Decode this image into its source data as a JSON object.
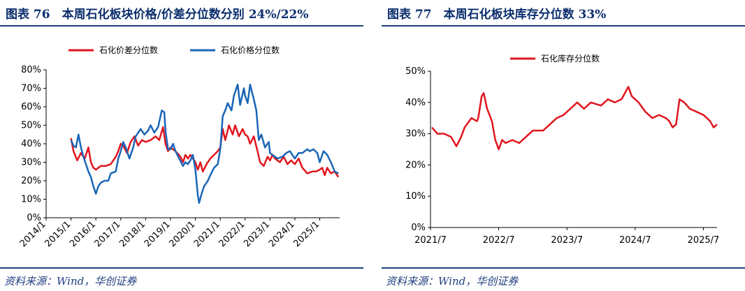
{
  "panel1": {
    "title": "图表 76　本周石化板块价格/价差分位数分别 24%/22%",
    "source": "资料来源：Wind，华创证券"
  },
  "panel2": {
    "title": "图表 77　本周石化板块库存分位数 33%",
    "source": "资料来源：Wind，华创证券"
  },
  "chart_data": [
    {
      "type": "line",
      "title": "本周石化板块价格/价差分位数分别 24%/22%",
      "x_ticks": [
        "2014/1",
        "2015/1",
        "2016/1",
        "2017/1",
        "2018/1",
        "2019/1",
        "2020/1",
        "2021/1",
        "2022/1",
        "2023/1",
        "2024/1",
        "2025/1"
      ],
      "y_ticks": [
        "0%",
        "10%",
        "20%",
        "30%",
        "40%",
        "50%",
        "60%",
        "70%",
        "80%"
      ],
      "xlim": [
        2014.0,
        2025.8
      ],
      "ylim": [
        0,
        80
      ],
      "legend": "top",
      "series": [
        {
          "name": "石化价差分位数",
          "color": "#e0161e",
          "points": [
            [
              2015.0,
              43
            ],
            [
              2015.1,
              36
            ],
            [
              2015.25,
              31
            ],
            [
              2015.4,
              35
            ],
            [
              2015.55,
              32
            ],
            [
              2015.7,
              38
            ],
            [
              2015.8,
              30
            ],
            [
              2015.9,
              27
            ],
            [
              2016.0,
              26
            ],
            [
              2016.2,
              28
            ],
            [
              2016.4,
              28
            ],
            [
              2016.6,
              29
            ],
            [
              2016.8,
              33
            ],
            [
              2016.9,
              36
            ],
            [
              2017.0,
              40
            ],
            [
              2017.1,
              39
            ],
            [
              2017.25,
              35
            ],
            [
              2017.4,
              41
            ],
            [
              2017.55,
              44
            ],
            [
              2017.7,
              39
            ],
            [
              2017.85,
              42
            ],
            [
              2018.0,
              41
            ],
            [
              2018.2,
              42
            ],
            [
              2018.4,
              44
            ],
            [
              2018.55,
              42
            ],
            [
              2018.7,
              49
            ],
            [
              2018.8,
              40
            ],
            [
              2018.9,
              36
            ],
            [
              2019.0,
              38
            ],
            [
              2019.2,
              36
            ],
            [
              2019.4,
              33
            ],
            [
              2019.5,
              30
            ],
            [
              2019.6,
              34
            ],
            [
              2019.7,
              32
            ],
            [
              2019.8,
              34
            ],
            [
              2020.0,
              30
            ],
            [
              2020.1,
              26
            ],
            [
              2020.2,
              30
            ],
            [
              2020.3,
              25
            ],
            [
              2020.45,
              29
            ],
            [
              2020.6,
              32
            ],
            [
              2020.75,
              34
            ],
            [
              2020.9,
              36
            ],
            [
              2021.0,
              38
            ],
            [
              2021.1,
              48
            ],
            [
              2021.2,
              42
            ],
            [
              2021.35,
              50
            ],
            [
              2021.5,
              45
            ],
            [
              2021.6,
              50
            ],
            [
              2021.75,
              44
            ],
            [
              2021.9,
              48
            ],
            [
              2022.0,
              45
            ],
            [
              2022.1,
              44
            ],
            [
              2022.2,
              40
            ],
            [
              2022.35,
              44
            ],
            [
              2022.5,
              36
            ],
            [
              2022.6,
              30
            ],
            [
              2022.75,
              28
            ],
            [
              2022.9,
              33
            ],
            [
              2023.0,
              31
            ],
            [
              2023.1,
              34
            ],
            [
              2023.2,
              32
            ],
            [
              2023.4,
              30
            ],
            [
              2023.55,
              33
            ],
            [
              2023.7,
              29
            ],
            [
              2023.85,
              31
            ],
            [
              2024.0,
              29
            ],
            [
              2024.15,
              32
            ],
            [
              2024.3,
              27
            ],
            [
              2024.5,
              24
            ],
            [
              2024.7,
              25
            ],
            [
              2024.85,
              25
            ],
            [
              2025.0,
              26
            ],
            [
              2025.1,
              27
            ],
            [
              2025.2,
              23
            ],
            [
              2025.3,
              27
            ],
            [
              2025.45,
              24
            ],
            [
              2025.6,
              25
            ],
            [
              2025.75,
              22
            ]
          ]
        },
        {
          "name": "石化价格分位数",
          "color": "#1a66b8",
          "points": [
            [
              2015.0,
              42
            ],
            [
              2015.1,
              39
            ],
            [
              2015.2,
              38
            ],
            [
              2015.3,
              45
            ],
            [
              2015.4,
              38
            ],
            [
              2015.5,
              33
            ],
            [
              2015.6,
              29
            ],
            [
              2015.7,
              25
            ],
            [
              2015.8,
              22
            ],
            [
              2015.9,
              17
            ],
            [
              2016.0,
              13
            ],
            [
              2016.1,
              17
            ],
            [
              2016.2,
              19
            ],
            [
              2016.35,
              20
            ],
            [
              2016.5,
              20
            ],
            [
              2016.6,
              24
            ],
            [
              2016.8,
              25
            ],
            [
              2016.9,
              32
            ],
            [
              2017.0,
              36
            ],
            [
              2017.1,
              41
            ],
            [
              2017.2,
              38
            ],
            [
              2017.35,
              32
            ],
            [
              2017.5,
              38
            ],
            [
              2017.6,
              44
            ],
            [
              2017.8,
              48
            ],
            [
              2017.95,
              45
            ],
            [
              2018.1,
              47
            ],
            [
              2018.2,
              50
            ],
            [
              2018.35,
              46
            ],
            [
              2018.5,
              49
            ],
            [
              2018.65,
              58
            ],
            [
              2018.75,
              57
            ],
            [
              2018.8,
              47
            ],
            [
              2018.9,
              37
            ],
            [
              2019.0,
              37
            ],
            [
              2019.1,
              40
            ],
            [
              2019.2,
              36
            ],
            [
              2019.35,
              32
            ],
            [
              2019.5,
              28
            ],
            [
              2019.6,
              30
            ],
            [
              2019.7,
              29
            ],
            [
              2019.8,
              31
            ],
            [
              2019.9,
              34
            ],
            [
              2020.0,
              26
            ],
            [
              2020.1,
              12
            ],
            [
              2020.15,
              8
            ],
            [
              2020.25,
              13
            ],
            [
              2020.35,
              17
            ],
            [
              2020.5,
              20
            ],
            [
              2020.6,
              23
            ],
            [
              2020.75,
              27
            ],
            [
              2020.9,
              29
            ],
            [
              2021.0,
              37
            ],
            [
              2021.1,
              55
            ],
            [
              2021.2,
              58
            ],
            [
              2021.3,
              62
            ],
            [
              2021.45,
              58
            ],
            [
              2021.55,
              66
            ],
            [
              2021.7,
              72
            ],
            [
              2021.8,
              61
            ],
            [
              2021.95,
              70
            ],
            [
              2022.0,
              66
            ],
            [
              2022.1,
              62
            ],
            [
              2022.2,
              72
            ],
            [
              2022.35,
              64
            ],
            [
              2022.45,
              58
            ],
            [
              2022.55,
              42
            ],
            [
              2022.65,
              45
            ],
            [
              2022.8,
              38
            ],
            [
              2022.95,
              41
            ],
            [
              2023.0,
              35
            ],
            [
              2023.1,
              34
            ],
            [
              2023.3,
              32
            ],
            [
              2023.5,
              33
            ],
            [
              2023.65,
              35
            ],
            [
              2023.8,
              36
            ],
            [
              2024.0,
              32
            ],
            [
              2024.15,
              35
            ],
            [
              2024.3,
              35
            ],
            [
              2024.5,
              37
            ],
            [
              2024.6,
              36
            ],
            [
              2024.75,
              37
            ],
            [
              2024.9,
              35
            ],
            [
              2025.0,
              30
            ],
            [
              2025.15,
              36
            ],
            [
              2025.3,
              34
            ],
            [
              2025.45,
              30
            ],
            [
              2025.6,
              25
            ],
            [
              2025.75,
              24
            ]
          ]
        }
      ]
    },
    {
      "type": "line",
      "title": "本周石化板块库存分位数 33%",
      "x_ticks": [
        "2021/7",
        "2022/7",
        "2023/7",
        "2024/7",
        "2025/7"
      ],
      "y_ticks": [
        "0%",
        "10%",
        "20%",
        "30%",
        "40%",
        "50%"
      ],
      "xlim": [
        2021.5,
        2025.7
      ],
      "ylim": [
        0,
        50
      ],
      "legend": "top",
      "series": [
        {
          "name": "石化库存分位数",
          "color": "#e0161e",
          "points": [
            [
              2021.52,
              32
            ],
            [
              2021.6,
              30
            ],
            [
              2021.7,
              30
            ],
            [
              2021.8,
              29
            ],
            [
              2021.88,
              26
            ],
            [
              2021.95,
              29
            ],
            [
              2022.0,
              32
            ],
            [
              2022.1,
              35
            ],
            [
              2022.18,
              34
            ],
            [
              2022.2,
              35
            ],
            [
              2022.25,
              42
            ],
            [
              2022.28,
              43
            ],
            [
              2022.33,
              38
            ],
            [
              2022.4,
              34
            ],
            [
              2022.45,
              28
            ],
            [
              2022.5,
              25
            ],
            [
              2022.55,
              28
            ],
            [
              2022.6,
              27
            ],
            [
              2022.7,
              28
            ],
            [
              2022.8,
              27
            ],
            [
              2022.9,
              29
            ],
            [
              2023.0,
              31
            ],
            [
              2023.15,
              31
            ],
            [
              2023.25,
              33
            ],
            [
              2023.35,
              35
            ],
            [
              2023.45,
              36
            ],
            [
              2023.55,
              38
            ],
            [
              2023.65,
              40
            ],
            [
              2023.75,
              38
            ],
            [
              2023.85,
              40
            ],
            [
              2024.0,
              39
            ],
            [
              2024.1,
              41
            ],
            [
              2024.2,
              40
            ],
            [
              2024.3,
              41
            ],
            [
              2024.4,
              45
            ],
            [
              2024.45,
              42
            ],
            [
              2024.55,
              40
            ],
            [
              2024.65,
              37
            ],
            [
              2024.75,
              35
            ],
            [
              2024.85,
              36
            ],
            [
              2024.95,
              35
            ],
            [
              2025.0,
              34
            ],
            [
              2025.05,
              32
            ],
            [
              2025.1,
              33
            ],
            [
              2025.15,
              41
            ],
            [
              2025.22,
              40
            ],
            [
              2025.3,
              38
            ],
            [
              2025.4,
              37
            ],
            [
              2025.5,
              36
            ],
            [
              2025.55,
              35
            ],
            [
              2025.6,
              34
            ],
            [
              2025.65,
              32
            ],
            [
              2025.7,
              33
            ]
          ]
        }
      ]
    }
  ]
}
